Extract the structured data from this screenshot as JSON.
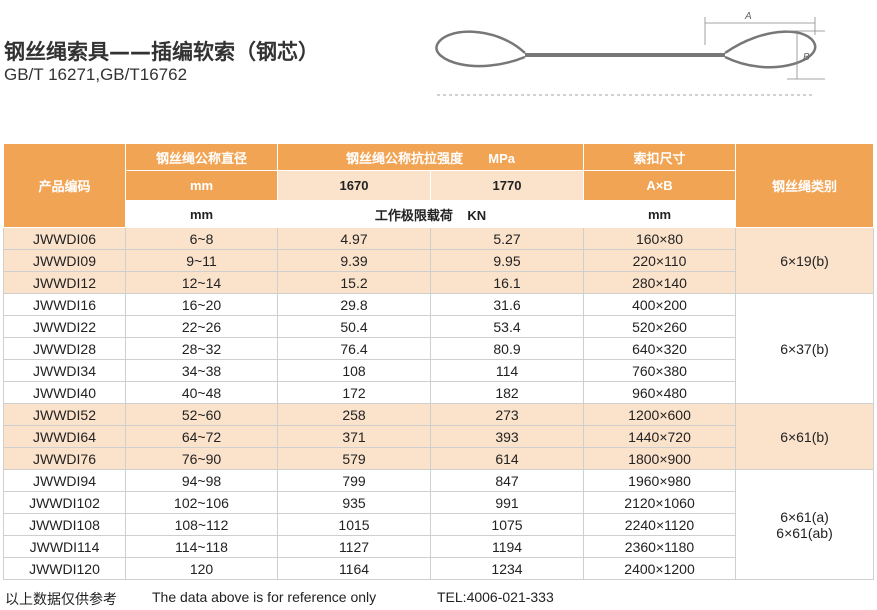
{
  "header": {
    "title": "钢丝绳索具——插编软索（钢芯）",
    "standard": "GB/T 16271,GB/T16762"
  },
  "diagram": {
    "label_a": "A",
    "label_b": "B"
  },
  "table": {
    "headers": {
      "code": "产品编码",
      "diameter": "钢丝绳公称直径",
      "diameter_unit": "mm",
      "diameter_unit2": "mm",
      "strength": "钢丝绳公称抗拉强度",
      "strength_unit": "MPa",
      "strength_values": [
        "1670",
        "1770"
      ],
      "load": "工作极限载荷",
      "load_unit": "KN",
      "size": "索扣尺寸",
      "size_dims": "A×B",
      "size_unit": "mm",
      "category": "钢丝绳类别"
    },
    "groups": [
      {
        "category": [
          "6×19(b)"
        ],
        "rows": [
          [
            "JWWDI06",
            "6~8",
            "4.97",
            "5.27",
            "160×80"
          ],
          [
            "JWWDI09",
            "9~11",
            "9.39",
            "9.95",
            "220×110"
          ],
          [
            "JWWDI12",
            "12~14",
            "15.2",
            "16.1",
            "280×140"
          ]
        ]
      },
      {
        "category": [
          "6×37(b)"
        ],
        "rows": [
          [
            "JWWDI16",
            "16~20",
            "29.8",
            "31.6",
            "400×200"
          ],
          [
            "JWWDI22",
            "22~26",
            "50.4",
            "53.4",
            "520×260"
          ],
          [
            "JWWDI28",
            "28~32",
            "76.4",
            "80.9",
            "640×320"
          ],
          [
            "JWWDI34",
            "34~38",
            "108",
            "114",
            "760×380"
          ],
          [
            "JWWDI40",
            "40~48",
            "172",
            "182",
            "960×480"
          ]
        ]
      },
      {
        "category": [
          "6×61(b)"
        ],
        "rows": [
          [
            "JWWDI52",
            "52~60",
            "258",
            "273",
            "1200×600"
          ],
          [
            "JWWDI64",
            "64~72",
            "371",
            "393",
            "1440×720"
          ],
          [
            "JWWDI76",
            "76~90",
            "579",
            "614",
            "1800×900"
          ]
        ]
      },
      {
        "category": [
          "6×61(a)",
          "6×61(ab)"
        ],
        "rows": [
          [
            "JWWDI94",
            "94~98",
            "799",
            "847",
            "1960×980"
          ],
          [
            "JWWDI102",
            "102~106",
            "935",
            "991",
            "2120×1060"
          ],
          [
            "JWWDI108",
            "108~112",
            "1015",
            "1075",
            "2240×1120"
          ],
          [
            "JWWDI114",
            "114~118",
            "1127",
            "1194",
            "2360×1180"
          ],
          [
            "JWWDI120",
            "120",
            "1164",
            "1234",
            "2400×1200"
          ]
        ]
      }
    ]
  },
  "footer": {
    "note_cn": "以上数据仅供参考",
    "note_en": "The data above is for reference only",
    "tel": "TEL:4006-021-333"
  }
}
